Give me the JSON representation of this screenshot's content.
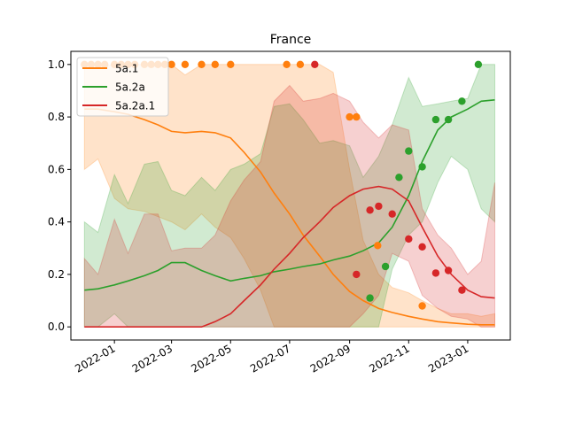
{
  "chart_data": {
    "type": "line",
    "title": "France",
    "xlabel": "",
    "ylabel": "",
    "xlim": [
      "2021-11-17",
      "2023-02-14"
    ],
    "ylim": [
      -0.05,
      1.05
    ],
    "grid": false,
    "legend_position": "top-left",
    "x_ticks": [
      {
        "date": "2022-01-01",
        "label": "2022-01"
      },
      {
        "date": "2022-03-01",
        "label": "2022-03"
      },
      {
        "date": "2022-05-01",
        "label": "2022-05"
      },
      {
        "date": "2022-07-01",
        "label": "2022-07"
      },
      {
        "date": "2022-09-01",
        "label": "2022-09"
      },
      {
        "date": "2022-11-01",
        "label": "2022-11"
      },
      {
        "date": "2023-01-01",
        "label": "2023-01"
      }
    ],
    "y_ticks": [
      {
        "value": 0.0,
        "label": "0.0"
      },
      {
        "value": 0.2,
        "label": "0.2"
      },
      {
        "value": 0.4,
        "label": "0.4"
      },
      {
        "value": 0.6,
        "label": "0.6"
      },
      {
        "value": 0.8,
        "label": "0.8"
      },
      {
        "value": 1.0,
        "label": "1.0"
      }
    ],
    "series": [
      {
        "name": "5a.1",
        "color": "#ff7f0e",
        "x": [
          "2021-12-01",
          "2021-12-15",
          "2022-01-01",
          "2022-01-15",
          "2022-02-01",
          "2022-02-15",
          "2022-03-01",
          "2022-03-15",
          "2022-04-01",
          "2022-04-15",
          "2022-05-01",
          "2022-05-15",
          "2022-06-01",
          "2022-06-15",
          "2022-07-01",
          "2022-07-15",
          "2022-08-01",
          "2022-08-15",
          "2022-09-01",
          "2022-09-15",
          "2022-10-01",
          "2022-10-15",
          "2022-11-01",
          "2022-11-15",
          "2022-12-01",
          "2022-12-15",
          "2023-01-01",
          "2023-01-15",
          "2023-01-29"
        ],
        "y": [
          0.83,
          0.83,
          0.82,
          0.81,
          0.79,
          0.77,
          0.745,
          0.74,
          0.745,
          0.74,
          0.72,
          0.665,
          0.59,
          0.51,
          0.43,
          0.35,
          0.27,
          0.2,
          0.135,
          0.1,
          0.07,
          0.055,
          0.04,
          0.03,
          0.02,
          0.015,
          0.01,
          0.008,
          0.008
        ],
        "ci_upper": [
          0.99,
          0.99,
          1.0,
          1.0,
          1.0,
          1.0,
          1.0,
          0.96,
          1.0,
          1.0,
          1.0,
          1.0,
          1.0,
          1.0,
          1.0,
          1.0,
          1.0,
          0.97,
          0.6,
          0.33,
          0.2,
          0.15,
          0.13,
          0.1,
          0.07,
          0.05,
          0.05,
          0.04,
          0.05
        ],
        "ci_lower": [
          0.6,
          0.64,
          0.49,
          0.45,
          0.44,
          0.42,
          0.4,
          0.37,
          0.43,
          0.38,
          0.34,
          0.26,
          0.14,
          0.0,
          0.0,
          0.0,
          0.0,
          0.0,
          0.0,
          0.0,
          0.0,
          0.0,
          0.0,
          0.0,
          0.0,
          0.0,
          0.0,
          0.0,
          0.0
        ],
        "points": {
          "x": [
            "2021-12-01",
            "2021-12-08",
            "2021-12-15",
            "2021-12-22",
            "2022-01-01",
            "2022-01-08",
            "2022-01-15",
            "2022-01-22",
            "2022-02-01",
            "2022-02-08",
            "2022-02-15",
            "2022-02-22",
            "2022-03-01",
            "2022-03-15",
            "2022-04-01",
            "2022-04-15",
            "2022-05-01",
            "2022-06-28",
            "2022-07-12",
            "2022-09-01",
            "2022-09-08",
            "2022-09-30",
            "2022-11-15"
          ],
          "y": [
            1.0,
            1.0,
            1.0,
            1.0,
            1.0,
            1.0,
            1.0,
            1.0,
            1.0,
            1.0,
            1.0,
            1.0,
            1.0,
            1.0,
            1.0,
            1.0,
            1.0,
            1.0,
            1.0,
            0.8,
            0.8,
            0.31,
            0.08
          ]
        }
      },
      {
        "name": "5a.2a",
        "color": "#2ca02c",
        "x": [
          "2021-12-01",
          "2021-12-15",
          "2022-01-01",
          "2022-01-15",
          "2022-02-01",
          "2022-02-15",
          "2022-03-01",
          "2022-03-15",
          "2022-04-01",
          "2022-04-15",
          "2022-05-01",
          "2022-05-15",
          "2022-06-01",
          "2022-06-15",
          "2022-07-01",
          "2022-07-15",
          "2022-08-01",
          "2022-08-15",
          "2022-09-01",
          "2022-09-15",
          "2022-10-01",
          "2022-10-15",
          "2022-11-01",
          "2022-11-15",
          "2022-12-01",
          "2022-12-15",
          "2023-01-01",
          "2023-01-15",
          "2023-01-29"
        ],
        "y": [
          0.14,
          0.145,
          0.16,
          0.175,
          0.195,
          0.215,
          0.245,
          0.245,
          0.215,
          0.195,
          0.175,
          0.185,
          0.195,
          0.21,
          0.22,
          0.23,
          0.24,
          0.255,
          0.27,
          0.29,
          0.32,
          0.38,
          0.5,
          0.63,
          0.75,
          0.8,
          0.83,
          0.86,
          0.865
        ],
        "ci_upper": [
          0.4,
          0.36,
          0.58,
          0.47,
          0.62,
          0.63,
          0.52,
          0.5,
          0.57,
          0.52,
          0.6,
          0.62,
          0.66,
          0.84,
          0.85,
          0.79,
          0.7,
          0.71,
          0.69,
          0.57,
          0.65,
          0.77,
          0.95,
          0.84,
          0.85,
          0.86,
          0.87,
          1.0,
          1.0
        ],
        "ci_lower": [
          0.0,
          0.0,
          0.05,
          0.0,
          0.0,
          0.0,
          0.0,
          0.0,
          0.0,
          0.0,
          0.0,
          0.0,
          0.0,
          0.0,
          0.0,
          0.0,
          0.0,
          0.0,
          0.0,
          0.0,
          0.0,
          0.22,
          0.35,
          0.4,
          0.55,
          0.65,
          0.6,
          0.45,
          0.4
        ],
        "points": {
          "x": [
            "2022-09-22",
            "2022-10-08",
            "2022-10-22",
            "2022-11-01",
            "2022-11-15",
            "2022-11-29",
            "2022-12-12",
            "2022-12-26",
            "2023-01-12"
          ],
          "y": [
            0.11,
            0.23,
            0.57,
            0.67,
            0.61,
            0.79,
            0.79,
            0.86,
            1.0
          ]
        }
      },
      {
        "name": "5a.2a.1",
        "color": "#d62728",
        "x": [
          "2021-12-01",
          "2021-12-15",
          "2022-01-01",
          "2022-01-15",
          "2022-02-01",
          "2022-02-15",
          "2022-03-01",
          "2022-03-15",
          "2022-04-01",
          "2022-04-15",
          "2022-05-01",
          "2022-05-15",
          "2022-06-01",
          "2022-06-15",
          "2022-07-01",
          "2022-07-15",
          "2022-08-01",
          "2022-08-15",
          "2022-09-01",
          "2022-09-15",
          "2022-10-01",
          "2022-10-15",
          "2022-11-01",
          "2022-11-15",
          "2022-12-01",
          "2022-12-15",
          "2023-01-01",
          "2023-01-15",
          "2023-01-29"
        ],
        "y": [
          0.0,
          0.0,
          0.0,
          0.0,
          0.0,
          0.0,
          0.0,
          0.0,
          0.0,
          0.02,
          0.05,
          0.1,
          0.16,
          0.22,
          0.28,
          0.34,
          0.4,
          0.455,
          0.5,
          0.525,
          0.535,
          0.525,
          0.48,
          0.38,
          0.27,
          0.2,
          0.14,
          0.115,
          0.11
        ],
        "ci_upper": [
          0.26,
          0.2,
          0.41,
          0.28,
          0.43,
          0.43,
          0.29,
          0.3,
          0.3,
          0.35,
          0.48,
          0.56,
          0.63,
          0.86,
          0.92,
          0.86,
          0.87,
          0.89,
          0.86,
          0.78,
          0.72,
          0.77,
          0.75,
          0.45,
          0.35,
          0.3,
          0.2,
          0.25,
          0.55
        ],
        "ci_lower": [
          0.0,
          0.0,
          0.0,
          0.0,
          0.0,
          0.0,
          0.0,
          0.0,
          0.0,
          0.0,
          0.0,
          0.0,
          0.0,
          0.0,
          0.0,
          0.0,
          0.0,
          0.0,
          0.0,
          0.05,
          0.12,
          0.28,
          0.25,
          0.12,
          0.07,
          0.04,
          0.03,
          0.0,
          0.0
        ],
        "points": {
          "x": [
            "2022-07-27",
            "2022-09-08",
            "2022-09-22",
            "2022-10-01",
            "2022-10-15",
            "2022-11-01",
            "2022-11-15",
            "2022-11-29",
            "2022-12-12",
            "2022-12-26"
          ],
          "y": [
            1.0,
            0.2,
            0.445,
            0.46,
            0.43,
            0.335,
            0.305,
            0.205,
            0.215,
            0.14
          ]
        }
      }
    ]
  }
}
